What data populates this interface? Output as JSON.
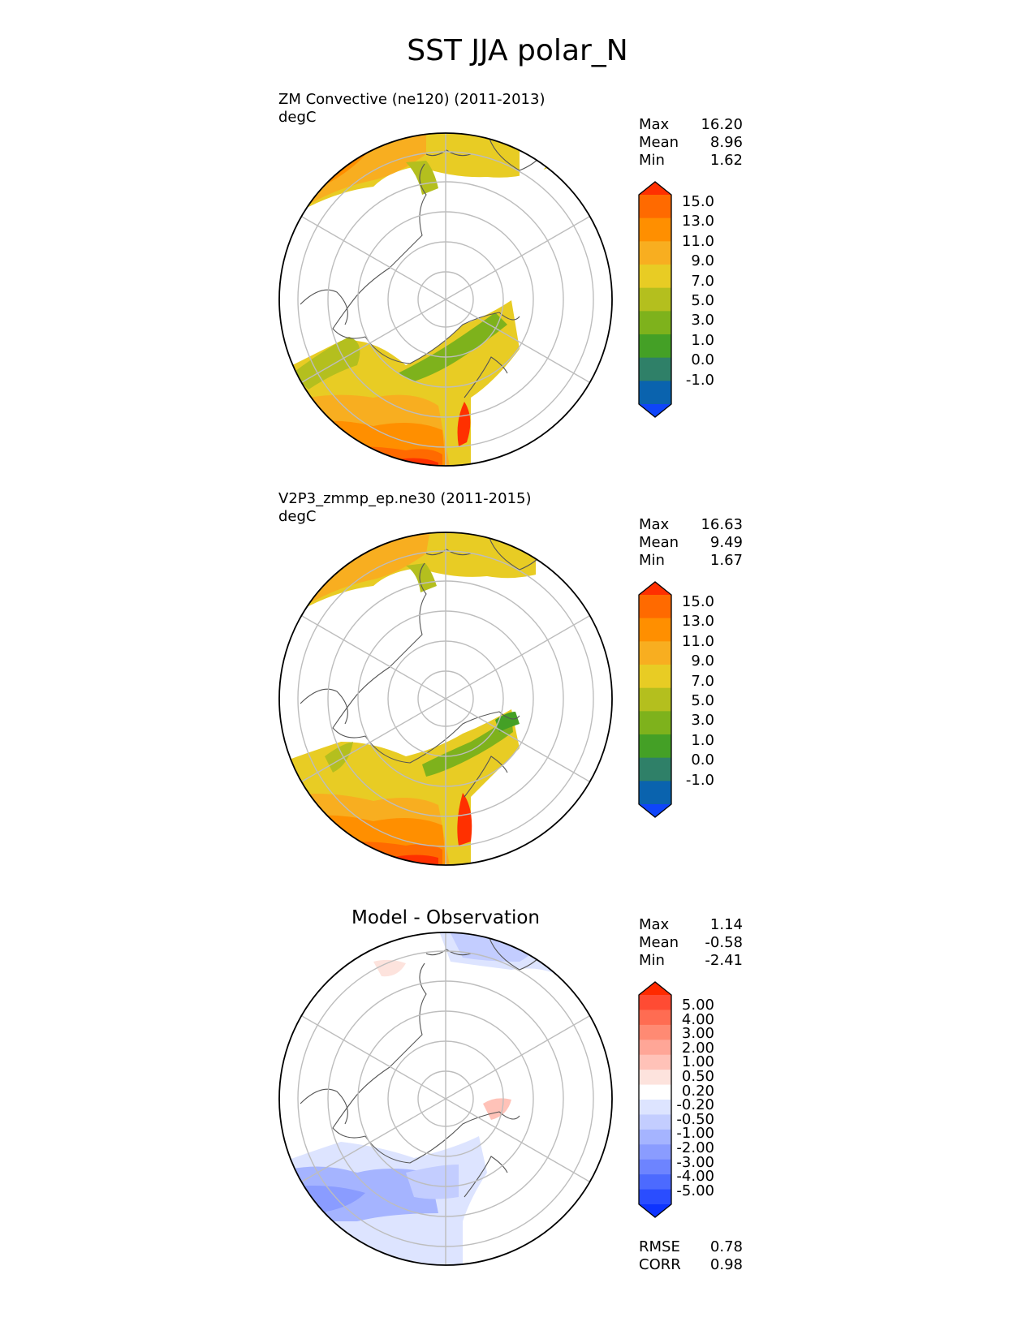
{
  "figure": {
    "title": "SST JJA polar_N"
  },
  "panels": [
    {
      "id": "test",
      "title_lines": [
        "ZM Convective (ne120) (2011-2013)",
        "degC"
      ],
      "stats": [
        {
          "label": "Max",
          "value": "16.20"
        },
        {
          "label": "Mean",
          "value": "8.96"
        },
        {
          "label": "Min",
          "value": "1.62"
        }
      ],
      "colorbar": {
        "ticks": [
          "15.0",
          "13.0",
          "11.0",
          "9.0",
          "7.0",
          "5.0",
          "3.0",
          "1.0",
          "0.0",
          "-1.0"
        ],
        "colors": [
          "#ff3000",
          "#ff6a00",
          "#ff8f00",
          "#f8ae20",
          "#e8cc24",
          "#b4bf1e",
          "#7eb21c",
          "#44a026",
          "#2f8068",
          "#0a63ae",
          "#0f45fa"
        ]
      }
    },
    {
      "id": "reference",
      "title_lines": [
        "V2P3_zmmp_ep.ne30 (2011-2015)",
        "degC"
      ],
      "stats": [
        {
          "label": "Max",
          "value": "16.63"
        },
        {
          "label": "Mean",
          "value": "9.49"
        },
        {
          "label": "Min",
          "value": "1.67"
        }
      ],
      "colorbar": {
        "ticks": [
          "15.0",
          "13.0",
          "11.0",
          "9.0",
          "7.0",
          "5.0",
          "3.0",
          "1.0",
          "0.0",
          "-1.0"
        ],
        "colors": [
          "#ff3000",
          "#ff6a00",
          "#ff8f00",
          "#f8ae20",
          "#e8cc24",
          "#b4bf1e",
          "#7eb21c",
          "#44a026",
          "#2f8068",
          "#0a63ae",
          "#0f45fa"
        ]
      }
    },
    {
      "id": "diff",
      "title_lines": [
        "Model - Observation"
      ],
      "stats": [
        {
          "label": "Max",
          "value": "1.14"
        },
        {
          "label": "Mean",
          "value": "-0.58"
        },
        {
          "label": "Min",
          "value": "-2.41"
        }
      ],
      "colorbar": {
        "ticks": [
          "5.00",
          "4.00",
          "3.00",
          "2.00",
          "1.00",
          "0.50",
          "0.20",
          "-0.20",
          "-0.50",
          "-1.00",
          "-2.00",
          "-3.00",
          "-4.00",
          "-5.00"
        ],
        "colors": [
          "#ff2a00",
          "#ff4b33",
          "#ff6c52",
          "#ff8a73",
          "#ffa697",
          "#ffc2b8",
          "#fde3dd",
          "#ffffff",
          "#dde4ff",
          "#c3cdff",
          "#a5b4ff",
          "#8a9cff",
          "#6d84ff",
          "#4c6aff",
          "#2a4dff",
          "#0d33ff"
        ]
      },
      "extra_stats": [
        {
          "label": "RMSE",
          "value": "0.78"
        },
        {
          "label": "CORR",
          "value": "0.98"
        }
      ]
    }
  ],
  "chart_data": [
    {
      "type": "heatmap",
      "title": "ZM Convective (ne120) (2011-2013)",
      "variable": "SST",
      "season": "JJA",
      "region": "polar_N",
      "units": "degC",
      "projection": "north polar stereographic",
      "stats": {
        "max": 16.2,
        "mean": 8.96,
        "min": 1.62
      },
      "contour_levels": [
        -1.0,
        0.0,
        1.0,
        3.0,
        5.0,
        7.0,
        9.0,
        11.0,
        13.0,
        15.0
      ]
    },
    {
      "type": "heatmap",
      "title": "V2P3_zmmp_ep.ne30 (2011-2015)",
      "variable": "SST",
      "season": "JJA",
      "region": "polar_N",
      "units": "degC",
      "projection": "north polar stereographic",
      "stats": {
        "max": 16.63,
        "mean": 9.49,
        "min": 1.67
      },
      "contour_levels": [
        -1.0,
        0.0,
        1.0,
        3.0,
        5.0,
        7.0,
        9.0,
        11.0,
        13.0,
        15.0
      ]
    },
    {
      "type": "heatmap",
      "title": "Model - Observation",
      "variable": "SST difference",
      "units": "degC",
      "projection": "north polar stereographic",
      "stats": {
        "max": 1.14,
        "mean": -0.58,
        "min": -2.41,
        "rmse": 0.78,
        "corr": 0.98
      },
      "contour_levels": [
        -5.0,
        -4.0,
        -3.0,
        -2.0,
        -1.0,
        -0.5,
        -0.2,
        0.2,
        0.5,
        1.0,
        2.0,
        3.0,
        4.0,
        5.0
      ]
    }
  ]
}
